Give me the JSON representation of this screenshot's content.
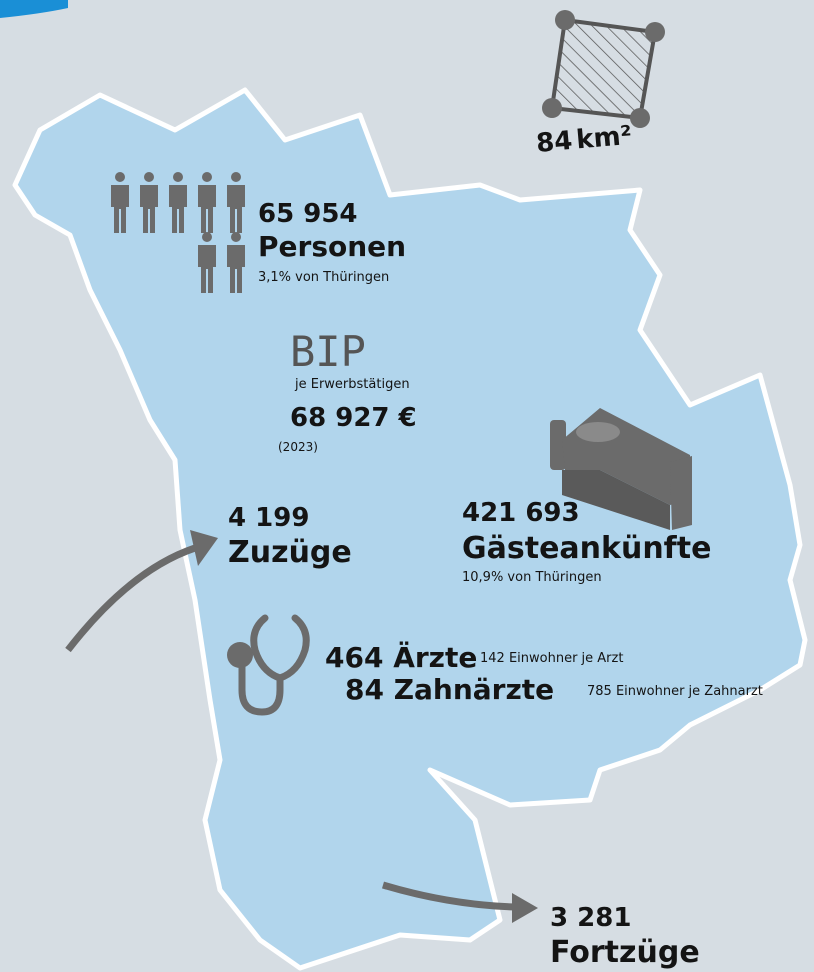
{
  "area": {
    "value": "84",
    "unit": "km²"
  },
  "population": {
    "value": "65 954",
    "label": "Personen",
    "share": "3,1% von Thüringen"
  },
  "bip": {
    "title": "BIP",
    "subtitle": "je Erwerbstätigen",
    "value": "68 927 €",
    "year": "(2023)"
  },
  "guests": {
    "value": "421 693",
    "label": "Gästeankünfte",
    "share": "10,9% von Thüringen"
  },
  "inflow": {
    "value": "4 199",
    "label": "Zuzüge"
  },
  "outflow": {
    "value": "3 281",
    "label": "Fortzüge"
  },
  "doctors": {
    "value": "464",
    "label": "Ärzte",
    "note": "142 Einwohner je Arzt"
  },
  "dentists": {
    "value": "84",
    "label": "Zahnärzte",
    "note": "785 Einwohner je Zahnarzt"
  }
}
